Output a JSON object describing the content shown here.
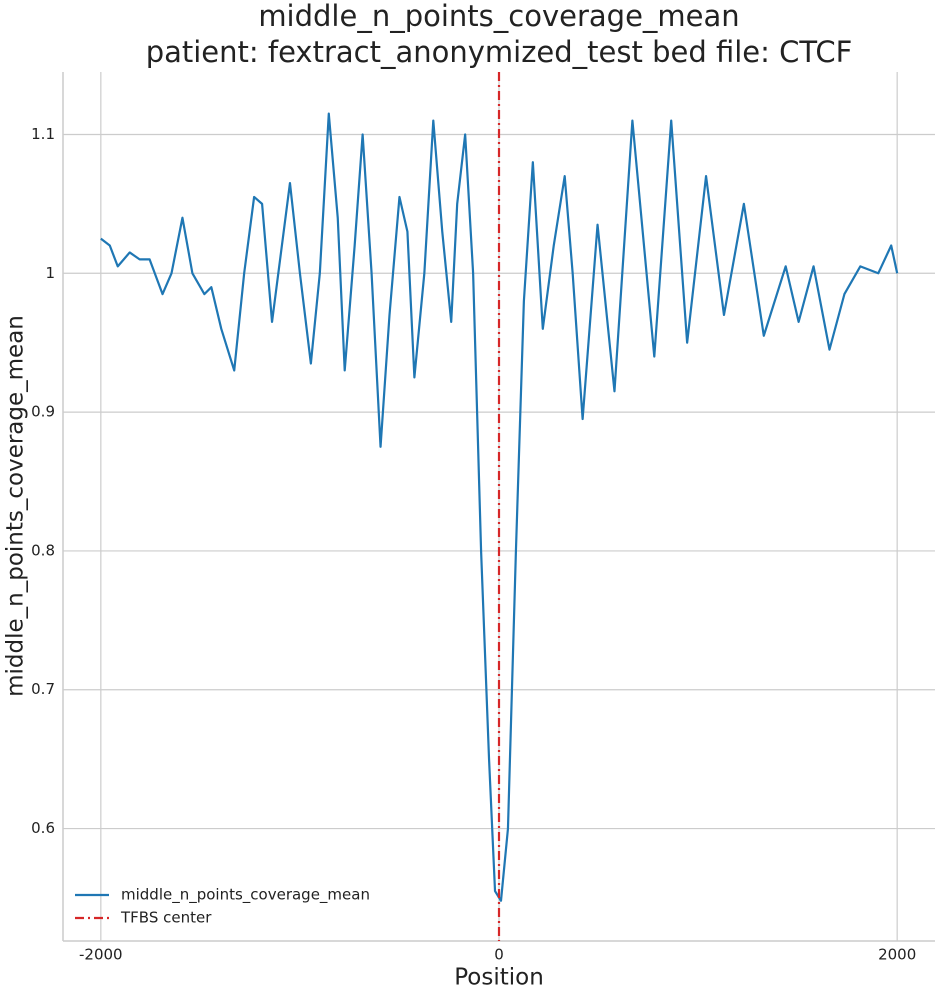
{
  "chart_data": {
    "type": "line",
    "title": "middle_n_points_coverage_mean",
    "subtitle": "patient: fextract_anonymized_test bed file: CTCF",
    "xlabel": "Position",
    "ylabel": "middle_n_points_coverage_mean",
    "xlim": [
      -2190,
      2190
    ],
    "ylim": [
      0.519,
      1.145
    ],
    "xticks": [
      -2000,
      0,
      2000
    ],
    "yticks": [
      0.6,
      0.7,
      0.8,
      0.9,
      1.0,
      1.1
    ],
    "grid": true,
    "legend": "lower left",
    "x": [
      -2000,
      -1955,
      -1915,
      -1855,
      -1805,
      -1755,
      -1690,
      -1645,
      -1590,
      -1540,
      -1480,
      -1445,
      -1395,
      -1330,
      -1280,
      -1230,
      -1190,
      -1140,
      -1050,
      -1000,
      -945,
      -900,
      -855,
      -810,
      -775,
      -725,
      -685,
      -640,
      -595,
      -550,
      -500,
      -460,
      -425,
      -375,
      -330,
      -285,
      -240,
      -210,
      -170,
      -130,
      -90,
      -50,
      -20,
      10,
      45,
      85,
      125,
      170,
      220,
      275,
      330,
      370,
      420,
      495,
      580,
      670,
      780,
      865,
      945,
      1040,
      1130,
      1230,
      1330,
      1440,
      1505,
      1580,
      1660,
      1735,
      1815,
      1905,
      1970,
      2000
    ],
    "series": [
      {
        "name": "middle_n_points_coverage_mean",
        "color": "#1f77b4",
        "values": [
          1.025,
          1.02,
          1.005,
          1.015,
          1.01,
          1.01,
          0.985,
          1.0,
          1.04,
          1.0,
          0.985,
          0.99,
          0.96,
          0.93,
          1.0,
          1.055,
          1.05,
          0.965,
          1.065,
          1.0,
          0.935,
          1.0,
          1.115,
          1.04,
          0.93,
          1.02,
          1.1,
          1.0,
          0.875,
          0.97,
          1.055,
          1.03,
          0.925,
          1.0,
          1.11,
          1.03,
          0.965,
          1.05,
          1.1,
          1.0,
          0.8,
          0.65,
          0.555,
          0.548,
          0.6,
          0.8,
          0.98,
          1.08,
          0.96,
          1.02,
          1.07,
          1.0,
          0.895,
          1.035,
          0.915,
          1.11,
          0.94,
          1.11,
          0.95,
          1.07,
          0.97,
          1.05,
          0.955,
          1.005,
          0.965,
          1.005,
          0.945,
          0.985,
          1.005,
          1.0,
          1.02,
          1.0
        ]
      }
    ],
    "vline": {
      "x": 0,
      "name": "TFBS center",
      "color": "#d62728"
    }
  }
}
